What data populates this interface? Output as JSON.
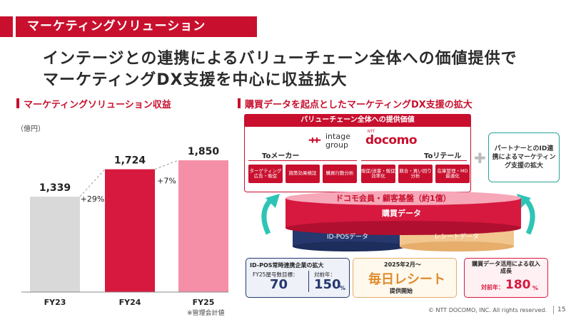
{
  "section_title": "マーケティングソリューション",
  "headline": [
    "インテージとの連携によるバリューチェーン全体への価値提供で",
    "マーケティングDX支援を中心に収益拡大"
  ],
  "left_heading": "マーケティングソリューション収益",
  "right_heading": "購買データを起点としたマーケティングDX支援の拡大",
  "chart_note": "※管理会計値",
  "chart_data": {
    "type": "bar",
    "title": "マーケティングソリューション収益",
    "ylabel": "（億円）",
    "categories": [
      "FY23",
      "FY24",
      "FY25"
    ],
    "values": [
      1339,
      1724,
      1850
    ],
    "value_labels": [
      "1,339",
      "1,724",
      "1,850"
    ],
    "growth_labels": [
      "+29%",
      "+7%"
    ],
    "colors": [
      "#d9d9d9",
      "#d7193f",
      "#f48fa7"
    ],
    "ylim": [
      0,
      2100
    ]
  },
  "value_chain": {
    "header": "バリューチェーン全体への提供価値",
    "to_maker": "Toメーカー",
    "to_retail": "Toリテール",
    "intage": [
      "intage",
      "group"
    ],
    "docomo_small": "NTT",
    "docomo": "docomo",
    "maker_items": [
      "ターゲティング広告・販促",
      "施策効果検証",
      "購買行動分析"
    ],
    "retail_items": [
      "販促/送客・販促効率化",
      "競合・買い回り分析",
      "在庫管理・MD最適化"
    ]
  },
  "partner": "パートナーとのID連携によるマーケティング支援の拡大",
  "base": {
    "member": "ドコモ会員・顧客基盤（約1億）",
    "purchase": "購買データ",
    "idpos": "ID-POSデータ",
    "receipt": "レシートデータ"
  },
  "kpi1": {
    "title": "ID-POS常時連携企業の拡大",
    "label1": "FY25屋号数目標：",
    "value1": "70",
    "label2": "対前年：",
    "value2": "150",
    "unit2": "%"
  },
  "kpi2": {
    "date": "2025年2月～",
    "name": "毎日レシート",
    "status": "提供開始"
  },
  "kpi3": {
    "title": "購買データ活用による収入成長",
    "label": "対前年：",
    "value": "180",
    "unit": "%"
  },
  "footer": "© NTT DOCOMO, INC.  All rights reserved.",
  "page_number": "15"
}
